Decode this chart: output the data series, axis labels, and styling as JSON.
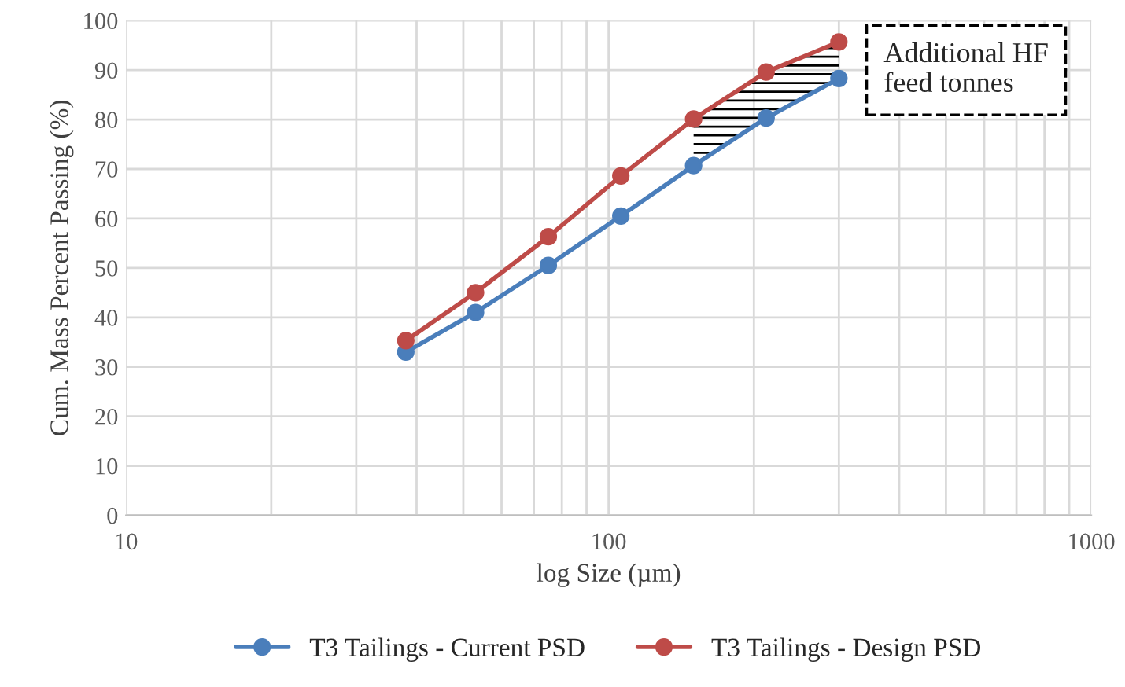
{
  "chart_data": {
    "type": "line",
    "xlabel": "log Size (µm)",
    "ylabel": "Cum. Mass Percent Passing (%)",
    "x": [
      38,
      53,
      75,
      106,
      150,
      212,
      300
    ],
    "series": [
      {
        "name": "T3 Tailings - Current PSD",
        "color": "#4a7ebb",
        "values": [
          33,
          41,
          50.5,
          60.5,
          70.7,
          80.3,
          88.3
        ]
      },
      {
        "name": "T3 Tailings - Design PSD",
        "color": "#be4b48",
        "values": [
          35.3,
          45,
          56.3,
          68.6,
          80.1,
          89.6,
          95.7
        ]
      }
    ],
    "log": "x",
    "xlim": [
      10,
      1000
    ],
    "xticks": [
      10,
      100,
      1000
    ],
    "ylim": [
      0,
      100
    ],
    "yticks": [
      0,
      10,
      20,
      30,
      40,
      50,
      60,
      70,
      80,
      90,
      100
    ],
    "grid": true,
    "legend": "bottom",
    "marker": "circle",
    "line_style": "solid",
    "annotations": [
      "Additional HF\nfeed tonnes"
    ]
  }
}
